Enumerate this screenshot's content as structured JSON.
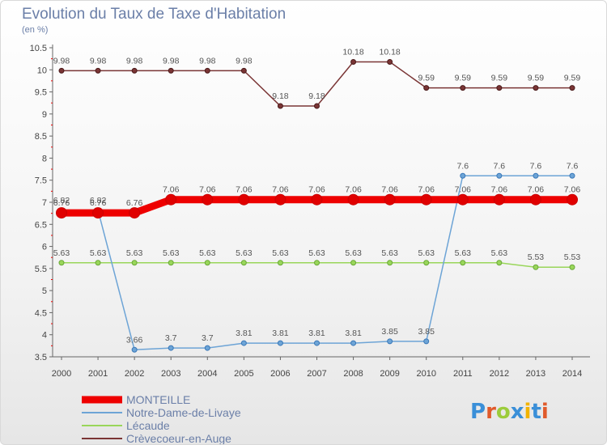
{
  "header": {
    "title": "Evolution du Taux de Taxe d'Habitation",
    "subtitle": "(en %)"
  },
  "logo": {
    "text": "Proxiti"
  },
  "chart_data": {
    "type": "line",
    "title": "Evolution du Taux de Taxe d'Habitation",
    "subtitle": "(en %)",
    "x": [
      "2000",
      "2001",
      "2002",
      "2003",
      "2004",
      "2005",
      "2006",
      "2007",
      "2008",
      "2009",
      "2010",
      "2011",
      "2012",
      "2013",
      "2014"
    ],
    "ylim": [
      3.5,
      10.5
    ],
    "yticks": [
      "3.5",
      "4",
      "4.5",
      "5",
      "5.5",
      "6",
      "6.5",
      "7",
      "7.5",
      "8",
      "8.5",
      "9",
      "9.5",
      "10",
      "10.5"
    ],
    "grid": false,
    "legend": "bottom-left",
    "series": [
      {
        "name": "MONTEILLE",
        "color": "#ee0000",
        "width": 9,
        "values": [
          6.76,
          6.76,
          6.76,
          7.06,
          7.06,
          7.06,
          7.06,
          7.06,
          7.06,
          7.06,
          7.06,
          7.06,
          7.06,
          7.06,
          7.06
        ],
        "labels": [
          "6.76",
          "6.76",
          "6.76",
          "7.06",
          "7.06",
          "7.06",
          "7.06",
          "7.06",
          "7.06",
          "7.06",
          "7.06",
          "7.06",
          "7.06",
          "7.06",
          "7.06"
        ]
      },
      {
        "name": "Notre-Dame-de-Livaye",
        "color": "#6da4d6",
        "width": 1.5,
        "values": [
          6.82,
          6.82,
          3.66,
          3.7,
          3.7,
          3.81,
          3.81,
          3.81,
          3.81,
          3.85,
          3.85,
          7.6,
          7.6,
          7.6,
          7.6
        ],
        "labels": [
          "6.82",
          "6.82",
          "3.66",
          "3.7",
          "3.7",
          "3.81",
          "3.81",
          "3.81",
          "3.81",
          "3.85",
          "3.85",
          "7.6",
          "7.6",
          "7.6",
          "7.6"
        ]
      },
      {
        "name": "Lécaude",
        "color": "#99d65a",
        "width": 1.5,
        "values": [
          5.63,
          5.63,
          5.63,
          5.63,
          5.63,
          5.63,
          5.63,
          5.63,
          5.63,
          5.63,
          5.63,
          5.63,
          5.63,
          5.53,
          5.53
        ],
        "labels": [
          "5.63",
          "5.63",
          "5.63",
          "5.63",
          "5.63",
          "5.63",
          "5.63",
          "5.63",
          "5.63",
          "5.63",
          "5.63",
          "5.63",
          "5.63",
          "5.53",
          "5.53"
        ]
      },
      {
        "name": "Crèvecoeur-en-Auge",
        "color": "#7a3535",
        "width": 1.5,
        "values": [
          9.98,
          9.98,
          9.98,
          9.98,
          9.98,
          9.98,
          9.18,
          9.18,
          10.18,
          10.18,
          9.59,
          9.59,
          9.59,
          9.59,
          9.59
        ],
        "labels": [
          "9.98",
          "9.98",
          "9.98",
          "9.98",
          "9.98",
          "9.98",
          "9.18",
          "9.18",
          "10.18",
          "10.18",
          "9.59",
          "9.59",
          "9.59",
          "9.59",
          "9.59"
        ]
      }
    ]
  }
}
